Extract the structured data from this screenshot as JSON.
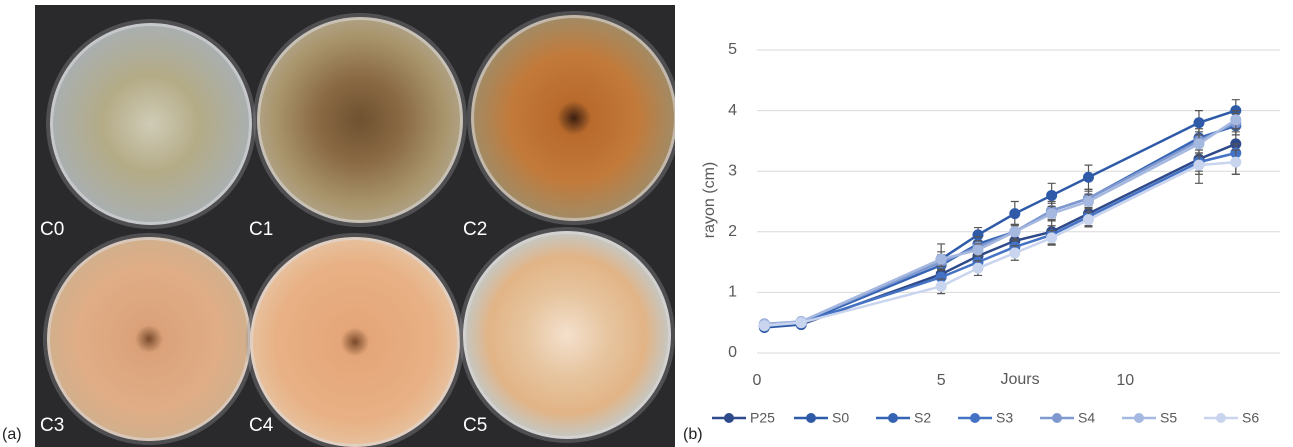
{
  "photo": {
    "labels": [
      "C0",
      "C1",
      "C2",
      "C3",
      "C4",
      "C5"
    ]
  },
  "panel_labels": [
    "(a)",
    "(b)"
  ],
  "chart_data": {
    "type": "line",
    "xlabel": "Jours",
    "ylabel": "rayon (cm)",
    "x": [
      0.2,
      1.2,
      5,
      6,
      7,
      8,
      9,
      12,
      13
    ],
    "xlim": [
      0,
      14.2
    ],
    "xticks": [
      0,
      5,
      10
    ],
    "ylim": [
      0,
      5
    ],
    "yticks": [
      0,
      1,
      2,
      3,
      4,
      5
    ],
    "grid": true,
    "legend": "bottom",
    "series": [
      {
        "name": "P25",
        "color": "#2f4a8a",
        "values": [
          0.45,
          0.47,
          1.3,
          1.6,
          1.85,
          2.0,
          2.3,
          3.2,
          3.45
        ],
        "errors": [
          0.03,
          0.03,
          0.2,
          0.15,
          0.15,
          0.2,
          0.2,
          0.4,
          0.5
        ]
      },
      {
        "name": "S0",
        "color": "#2e5aa8",
        "values": [
          0.42,
          0.47,
          1.55,
          1.95,
          2.3,
          2.6,
          2.9,
          3.8,
          4.0
        ],
        "errors": [
          0.03,
          0.03,
          0.25,
          0.12,
          0.2,
          0.2,
          0.2,
          0.2,
          0.18
        ]
      },
      {
        "name": "S2",
        "color": "#3564b4",
        "values": [
          0.45,
          0.5,
          1.45,
          1.8,
          2.0,
          2.35,
          2.55,
          3.55,
          3.75
        ],
        "errors": [
          0.03,
          0.03,
          0.15,
          0.12,
          0.12,
          0.15,
          0.15,
          0.15,
          0.15
        ]
      },
      {
        "name": "S3",
        "color": "#4472c4",
        "values": [
          0.45,
          0.5,
          1.25,
          1.5,
          1.75,
          1.95,
          2.25,
          3.15,
          3.3
        ],
        "errors": [
          0.03,
          0.03,
          0.12,
          0.12,
          0.1,
          0.15,
          0.15,
          0.15,
          0.15
        ]
      },
      {
        "name": "S4",
        "color": "#7f99d0",
        "values": [
          0.48,
          0.52,
          1.5,
          1.75,
          2.0,
          2.35,
          2.55,
          3.5,
          3.8
        ],
        "errors": [
          0.03,
          0.03,
          0.12,
          0.1,
          0.12,
          0.12,
          0.12,
          0.15,
          0.15
        ]
      },
      {
        "name": "S5",
        "color": "#a5b8e0",
        "values": [
          0.47,
          0.52,
          1.55,
          1.7,
          2.0,
          2.3,
          2.5,
          3.45,
          3.85
        ],
        "errors": [
          0.03,
          0.03,
          0.12,
          0.1,
          0.12,
          0.12,
          0.12,
          0.15,
          0.15
        ]
      },
      {
        "name": "S6",
        "color": "#c9d4ee",
        "values": [
          0.45,
          0.5,
          1.1,
          1.4,
          1.65,
          1.9,
          2.2,
          3.1,
          3.15
        ],
        "errors": [
          0.03,
          0.03,
          0.12,
          0.12,
          0.12,
          0.12,
          0.12,
          0.15,
          0.2
        ]
      }
    ]
  }
}
